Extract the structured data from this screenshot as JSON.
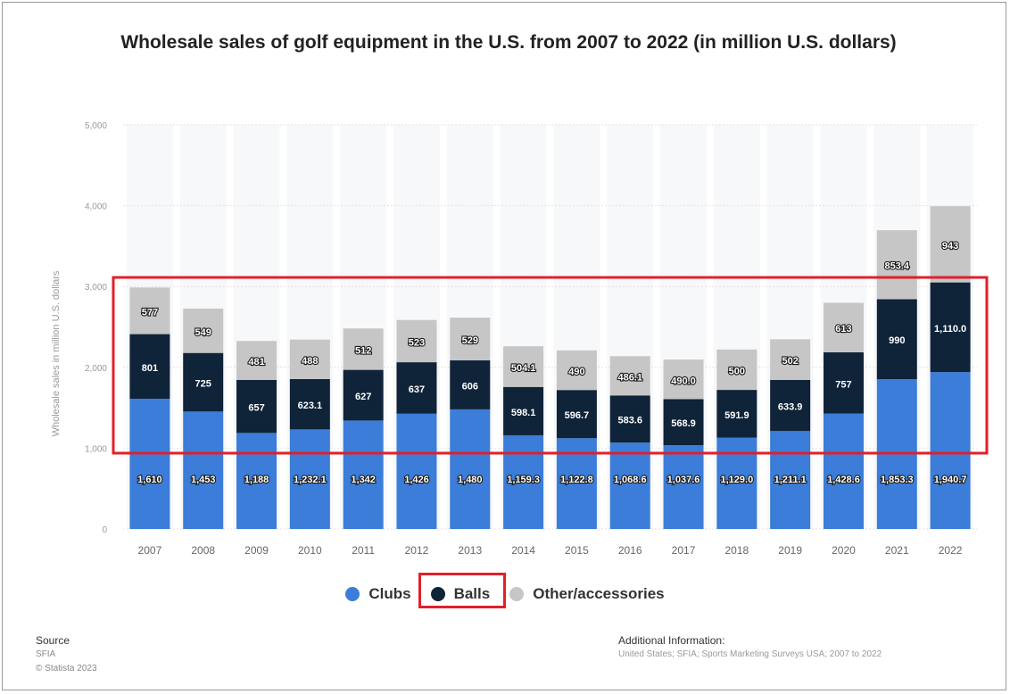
{
  "title": "Wholesale sales of golf equipment in the U.S. from 2007 to 2022 (in million U.S. dollars)",
  "legend": {
    "clubs": "Clubs",
    "balls": "Balls",
    "other": "Other/accessories"
  },
  "source": {
    "heading": "Source",
    "line1": "SFIA",
    "line2": "© Statista 2023"
  },
  "additional": {
    "heading": "Additional Information:",
    "line1": "United States; SFIA; Sports Marketing Surveys USA; 2007 to 2022"
  },
  "colors": {
    "clubs": "#3b7dd8",
    "balls": "#0f2339",
    "other": "#c6c6c6",
    "highlight": "#e0202b"
  },
  "chart_data": {
    "type": "bar",
    "stacked": true,
    "title": "Wholesale sales of golf equipment in the U.S. from 2007 to 2022 (in million U.S. dollars)",
    "xlabel": "",
    "ylabel": "Wholesale sales in million U.S. dollars",
    "ylim": [
      0,
      5000
    ],
    "yticks": [
      0,
      1000,
      2000,
      3000,
      4000,
      5000
    ],
    "ytick_labels": [
      "0",
      "1,000",
      "2,000",
      "3,000",
      "4,000",
      "5,000"
    ],
    "grid": true,
    "legend_position": "bottom",
    "categories": [
      "2007",
      "2008",
      "2009",
      "2010",
      "2011",
      "2012",
      "2013",
      "2014",
      "2015",
      "2016",
      "2017",
      "2018",
      "2019",
      "2020",
      "2021",
      "2022"
    ],
    "series": [
      {
        "name": "Clubs",
        "values": [
          1610,
          1453,
          1188,
          1232.1,
          1342,
          1426,
          1480,
          1159.3,
          1122.8,
          1068.6,
          1037.6,
          1129.0,
          1211.1,
          1428.6,
          1853.3,
          1940.7
        ],
        "labels": [
          "1,610",
          "1,453",
          "1,188",
          "1,232.1",
          "1,342",
          "1,426",
          "1,480",
          "1,159.3",
          "1,122.8",
          "1,068.6",
          "1,037.6",
          "1,129.0",
          "1,211.1",
          "1,428.6",
          "1,853.3",
          "1,940.7"
        ]
      },
      {
        "name": "Balls",
        "values": [
          801,
          725,
          657,
          623.1,
          627,
          637,
          606,
          598.1,
          596.7,
          583.6,
          568.9,
          591.9,
          633.9,
          757,
          990,
          1110.0
        ],
        "labels": [
          "801",
          "725",
          "657",
          "623.1",
          "627",
          "637",
          "606",
          "598.1",
          "596.7",
          "583.6",
          "568.9",
          "591.9",
          "633.9",
          "757",
          "990",
          "1,110.0"
        ]
      },
      {
        "name": "Other/accessories",
        "values": [
          577,
          549,
          481,
          488,
          512,
          523,
          529,
          504.1,
          490,
          486.1,
          490.0,
          500,
          502,
          613,
          853.4,
          943
        ],
        "labels": [
          "577",
          "549",
          "481",
          "488",
          "512",
          "523",
          "529",
          "504.1",
          "490",
          "486.1",
          "490.0",
          "500",
          "502",
          "613",
          "853.4",
          "943"
        ]
      }
    ]
  }
}
